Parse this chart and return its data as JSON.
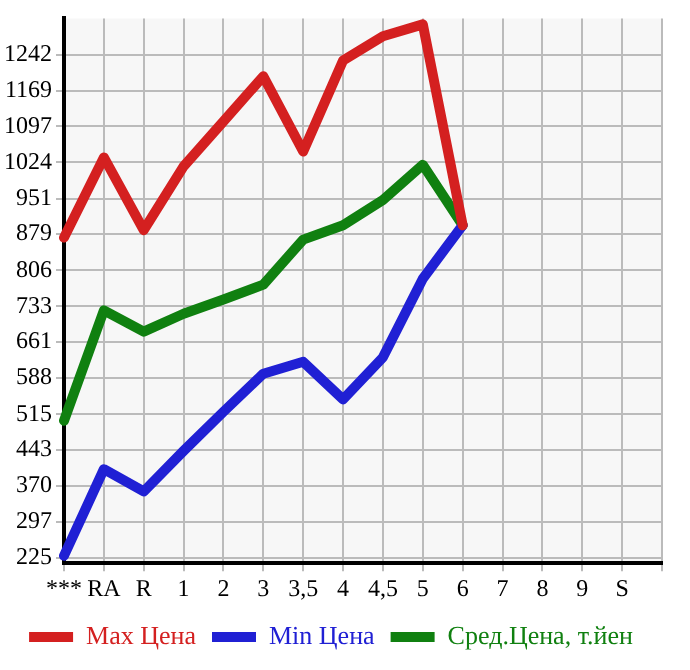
{
  "chart_data": {
    "type": "line",
    "categories": [
      "***",
      "RA",
      "R",
      "1",
      "2",
      "3",
      "3,5",
      "4",
      "4,5",
      "5",
      "6",
      "7",
      "8",
      "9",
      "S",
      null
    ],
    "series": [
      {
        "name": "Max Цена",
        "color": "#d42020",
        "values": [
          872,
          1034,
          887,
          1016,
          1107,
          1198,
          1046,
          1230,
          1279,
          1303,
          897,
          null,
          null,
          null,
          null,
          null
        ]
      },
      {
        "name": "Min Цена",
        "color": "#2020d4",
        "values": [
          229,
          404,
          359,
          441,
          520,
          597,
          621,
          545,
          630,
          789,
          897,
          null,
          null,
          null,
          null,
          null
        ]
      },
      {
        "name": "Сред.Цена, т.йен",
        "color": "#108010",
        "values": [
          502,
          725,
          682,
          718,
          747,
          777,
          868,
          897,
          948,
          1019,
          897,
          null,
          null,
          null,
          null,
          null
        ]
      }
    ],
    "ylim": [
      214,
      1315
    ],
    "yticks": [
      225,
      297,
      370,
      443,
      515,
      588,
      661,
      733,
      806,
      879,
      951,
      1024,
      1097,
      1169,
      1242
    ],
    "grid": true,
    "legend": "bottom",
    "marker": "none",
    "line_style": "solid"
  }
}
